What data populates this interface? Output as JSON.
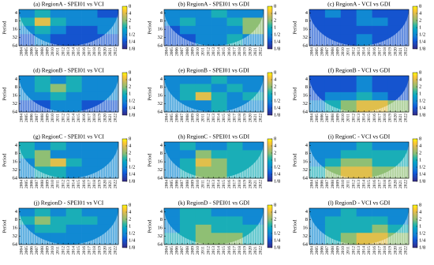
{
  "chart_data": [
    {
      "type": "heatmap",
      "title": "(a) RegionA - SPEI01 vs VCI",
      "ylabel": "Period",
      "colormap": "parula",
      "ylog": true,
      "xlim": [
        2004,
        2023
      ],
      "xticks": [
        2004,
        2005,
        2006,
        2007,
        2008,
        2009,
        2010,
        2011,
        2012,
        2013,
        2014,
        2015,
        2016,
        2017,
        2018,
        2019,
        2020,
        2021,
        2022
      ],
      "ylim": [
        3,
        64
      ],
      "yticks": [
        4,
        8,
        16,
        32,
        64
      ],
      "xbins": [
        2004,
        2007,
        2010,
        2013,
        2016,
        2019,
        2023
      ],
      "ybins": [
        3,
        6,
        12,
        24,
        64
      ],
      "clim": [
        0.125,
        8
      ],
      "cticks": [
        8,
        4,
        2,
        1,
        {
          "value": 0.5,
          "label": "1/2"
        },
        {
          "value": 0.25,
          "label": "1/4"
        },
        {
          "value": 0.125,
          "label": "1/8"
        }
      ],
      "values": [
        [
          0.5,
          1,
          0.5,
          0.5,
          0.5,
          0.25
        ],
        [
          1,
          4,
          1,
          0.5,
          0.5,
          0.5
        ],
        [
          0.5,
          1,
          0.5,
          0.25,
          0.25,
          0.5
        ],
        [
          0.25,
          0.5,
          0.25,
          0.25,
          0.25,
          0.25
        ]
      ]
    },
    {
      "type": "heatmap",
      "title": "(b) RegionA - SPEI01 vs GDI",
      "ylabel": "Period",
      "colormap": "parula",
      "ylog": true,
      "xlim": [
        2004,
        2023
      ],
      "xticks": [
        2004,
        2005,
        2006,
        2007,
        2008,
        2009,
        2010,
        2011,
        2012,
        2013,
        2014,
        2015,
        2016,
        2017,
        2018,
        2019,
        2020,
        2021,
        2022
      ],
      "ylim": [
        3,
        64
      ],
      "yticks": [
        4,
        8,
        16,
        32,
        64
      ],
      "xbins": [
        2004,
        2007,
        2010,
        2013,
        2016,
        2019,
        2023
      ],
      "ybins": [
        3,
        6,
        12,
        24,
        64
      ],
      "clim": [
        0.125,
        8
      ],
      "cticks": [
        8,
        4,
        2,
        1,
        {
          "value": 0.5,
          "label": "1/2"
        },
        {
          "value": 0.25,
          "label": "1/4"
        },
        {
          "value": 0.125,
          "label": "1/8"
        }
      ],
      "values": [
        [
          0.5,
          0.5,
          0.5,
          1,
          0.5,
          0.5
        ],
        [
          0.5,
          1,
          0.5,
          0.5,
          1,
          2
        ],
        [
          0.25,
          0.5,
          0.5,
          0.5,
          0.5,
          2
        ],
        [
          0.25,
          0.25,
          0.5,
          0.5,
          1,
          0.5
        ]
      ]
    },
    {
      "type": "heatmap",
      "title": "(c) RegionA - VCI vs GDI",
      "ylabel": "Period",
      "colormap": "parula",
      "ylog": true,
      "xlim": [
        2004,
        2023
      ],
      "xticks": [
        2004,
        2005,
        2006,
        2007,
        2008,
        2009,
        2010,
        2011,
        2012,
        2013,
        2014,
        2015,
        2016,
        2017,
        2018,
        2019,
        2020,
        2021,
        2022
      ],
      "ylim": [
        3,
        64
      ],
      "yticks": [
        4,
        8,
        16,
        32,
        64
      ],
      "xbins": [
        2004,
        2007,
        2010,
        2013,
        2016,
        2019,
        2023
      ],
      "ybins": [
        3,
        6,
        12,
        24,
        64
      ],
      "clim": [
        0.125,
        8
      ],
      "cticks": [
        8,
        4,
        2,
        1,
        {
          "value": 0.5,
          "label": "1/2"
        },
        {
          "value": 0.25,
          "label": "1/4"
        },
        {
          "value": 0.125,
          "label": "1/8"
        }
      ],
      "values": [
        [
          0.25,
          0.5,
          0.25,
          0.5,
          0.25,
          0.25
        ],
        [
          0.25,
          0.25,
          0.25,
          0.5,
          0.5,
          0.25
        ],
        [
          0.25,
          0.25,
          0.25,
          0.25,
          0.25,
          0.25
        ],
        [
          0.25,
          0.25,
          0.25,
          0.5,
          0.25,
          0.25
        ]
      ]
    },
    {
      "type": "heatmap",
      "title": "(d) RegionB - SPEI01 vs VCI",
      "ylabel": "Period",
      "colormap": "parula",
      "ylog": true,
      "xlim": [
        2004,
        2023
      ],
      "xticks": [
        2004,
        2005,
        2006,
        2007,
        2008,
        2009,
        2010,
        2011,
        2012,
        2013,
        2014,
        2015,
        2016,
        2017,
        2018,
        2019,
        2020,
        2021,
        2022
      ],
      "ylim": [
        3,
        64
      ],
      "yticks": [
        4,
        8,
        16,
        32,
        64
      ],
      "xbins": [
        2004,
        2007,
        2010,
        2013,
        2016,
        2019,
        2023
      ],
      "ybins": [
        3,
        6,
        12,
        24,
        64
      ],
      "clim": [
        0.125,
        8
      ],
      "cticks": [
        8,
        4,
        2,
        1,
        {
          "value": 0.5,
          "label": "1/2"
        },
        {
          "value": 0.25,
          "label": "1/4"
        },
        {
          "value": 0.125,
          "label": "1/8"
        }
      ],
      "values": [
        [
          0.5,
          1,
          0.5,
          1,
          0.5,
          0.5
        ],
        [
          0.5,
          1,
          2,
          1,
          0.5,
          0.5
        ],
        [
          0.5,
          0.5,
          1,
          0.5,
          0.5,
          0.5
        ],
        [
          0.25,
          0.25,
          0.5,
          0.5,
          0.25,
          0.25
        ]
      ]
    },
    {
      "type": "heatmap",
      "title": "(e) RegionB - SPEI01 vs GDI",
      "ylabel": "Period",
      "colormap": "parula",
      "ylog": true,
      "xlim": [
        2004,
        2023
      ],
      "xticks": [
        2004,
        2005,
        2006,
        2007,
        2008,
        2009,
        2010,
        2011,
        2012,
        2013,
        2014,
        2015,
        2016,
        2017,
        2018,
        2019,
        2020,
        2021,
        2022
      ],
      "ylim": [
        3,
        64
      ],
      "yticks": [
        4,
        8,
        16,
        32,
        64
      ],
      "xbins": [
        2004,
        2007,
        2010,
        2013,
        2016,
        2019,
        2023
      ],
      "ybins": [
        3,
        6,
        12,
        24,
        64
      ],
      "clim": [
        0.125,
        8
      ],
      "cticks": [
        8,
        4,
        2,
        1,
        {
          "value": 0.5,
          "label": "1/2"
        },
        {
          "value": 0.25,
          "label": "1/4"
        },
        {
          "value": 0.125,
          "label": "1/8"
        }
      ],
      "values": [
        [
          0.5,
          0.5,
          0.5,
          1,
          0.5,
          0.5
        ],
        [
          0.5,
          1,
          1,
          0.5,
          1,
          0.5
        ],
        [
          0.5,
          1,
          4,
          1,
          0.5,
          1
        ],
        [
          0.5,
          0.5,
          0.5,
          1,
          0.5,
          0.5
        ]
      ]
    },
    {
      "type": "heatmap",
      "title": "(f) RegionB - VCI vs GDI",
      "ylabel": "Period",
      "colormap": "parula",
      "ylog": true,
      "xlim": [
        2004,
        2023
      ],
      "xticks": [
        2004,
        2005,
        2006,
        2007,
        2008,
        2009,
        2010,
        2011,
        2012,
        2013,
        2014,
        2015,
        2016,
        2017,
        2018,
        2019,
        2020,
        2021,
        2022
      ],
      "ylim": [
        3,
        64
      ],
      "yticks": [
        4,
        8,
        16,
        32,
        64
      ],
      "xbins": [
        2004,
        2007,
        2010,
        2013,
        2016,
        2019,
        2023
      ],
      "ybins": [
        3,
        6,
        12,
        24,
        64
      ],
      "clim": [
        0.125,
        8
      ],
      "cticks": [
        8,
        4,
        2,
        1,
        {
          "value": 0.5,
          "label": "1/2"
        },
        {
          "value": 0.25,
          "label": "1/4"
        },
        {
          "value": 0.125,
          "label": "1/8"
        }
      ],
      "values": [
        [
          0.25,
          0.25,
          0.25,
          0.5,
          0.25,
          0.25
        ],
        [
          0.25,
          0.25,
          0.25,
          0.5,
          0.25,
          0.25
        ],
        [
          0.25,
          0.5,
          0.5,
          1,
          0.5,
          0.25
        ],
        [
          0.5,
          1,
          2,
          4,
          4,
          2
        ]
      ]
    },
    {
      "type": "heatmap",
      "title": "(g) RegionC - SPEI01 vs VCI",
      "ylabel": "Period",
      "colormap": "parula",
      "ylog": true,
      "xlim": [
        2004,
        2023
      ],
      "xticks": [
        2004,
        2005,
        2006,
        2007,
        2008,
        2009,
        2010,
        2011,
        2012,
        2013,
        2014,
        2015,
        2016,
        2017,
        2018,
        2019,
        2020,
        2021,
        2022
      ],
      "ylim": [
        3,
        64
      ],
      "yticks": [
        4,
        8,
        16,
        32,
        64
      ],
      "xbins": [
        2004,
        2007,
        2010,
        2013,
        2016,
        2019,
        2023
      ],
      "ybins": [
        3,
        6,
        12,
        24,
        64
      ],
      "clim": [
        0.125,
        8
      ],
      "cticks": [
        8,
        4,
        2,
        1,
        {
          "value": 0.5,
          "label": "1/2"
        },
        {
          "value": 0.25,
          "label": "1/4"
        },
        {
          "value": 0.125,
          "label": "1/8"
        }
      ],
      "values": [
        [
          1,
          0.5,
          1,
          0.5,
          0.5,
          0.5
        ],
        [
          1,
          2,
          0.5,
          0.5,
          0.5,
          0.5
        ],
        [
          0.5,
          2,
          4,
          1,
          0.5,
          0.5
        ],
        [
          0.5,
          1,
          1,
          0.5,
          0.5,
          0.5
        ]
      ]
    },
    {
      "type": "heatmap",
      "title": "(h) RegionC - SPEI01 vs GDI",
      "ylabel": "Period",
      "colormap": "parula",
      "ylog": true,
      "xlim": [
        2004,
        2023
      ],
      "xticks": [
        2004,
        2005,
        2006,
        2007,
        2008,
        2009,
        2010,
        2011,
        2012,
        2013,
        2014,
        2015,
        2016,
        2017,
        2018,
        2019,
        2020,
        2021,
        2022
      ],
      "ylim": [
        3,
        64
      ],
      "yticks": [
        4,
        8,
        16,
        32,
        64
      ],
      "xbins": [
        2004,
        2007,
        2010,
        2013,
        2016,
        2019,
        2023
      ],
      "ybins": [
        3,
        6,
        12,
        24,
        64
      ],
      "clim": [
        0.125,
        8
      ],
      "cticks": [
        8,
        4,
        2,
        1,
        {
          "value": 0.5,
          "label": "1/2"
        },
        {
          "value": 0.25,
          "label": "1/4"
        },
        {
          "value": 0.125,
          "label": "1/8"
        }
      ],
      "values": [
        [
          0.5,
          1,
          0.5,
          0.5,
          1,
          0.5
        ],
        [
          0.5,
          0.5,
          2,
          1,
          1,
          1
        ],
        [
          0.5,
          1,
          4,
          2,
          1,
          1
        ],
        [
          0.5,
          1,
          2,
          2,
          1,
          1
        ]
      ]
    },
    {
      "type": "heatmap",
      "title": "(i) RegionC - VCI vs GDI",
      "ylabel": "Period",
      "colormap": "parula",
      "ylog": true,
      "xlim": [
        2004,
        2023
      ],
      "xticks": [
        2004,
        2005,
        2006,
        2007,
        2008,
        2009,
        2010,
        2011,
        2012,
        2013,
        2014,
        2015,
        2016,
        2017,
        2018,
        2019,
        2020,
        2021,
        2022
      ],
      "ylim": [
        3,
        64
      ],
      "yticks": [
        4,
        8,
        16,
        32,
        64
      ],
      "xbins": [
        2004,
        2007,
        2010,
        2013,
        2016,
        2019,
        2023
      ],
      "ybins": [
        3,
        6,
        12,
        24,
        64
      ],
      "clim": [
        0.125,
        8
      ],
      "cticks": [
        8,
        4,
        2,
        1,
        {
          "value": 0.5,
          "label": "1/2"
        },
        {
          "value": 0.25,
          "label": "1/4"
        },
        {
          "value": 0.125,
          "label": "1/8"
        }
      ],
      "values": [
        [
          0.5,
          0.5,
          0.5,
          1,
          0.5,
          0.5
        ],
        [
          0.5,
          0.5,
          1,
          1,
          1,
          1
        ],
        [
          0.5,
          1,
          2,
          2,
          1,
          1
        ],
        [
          1,
          2,
          4,
          4,
          2,
          2
        ]
      ]
    },
    {
      "type": "heatmap",
      "title": "(j) RegionD - SPEI01 vs VCI",
      "ylabel": "Period",
      "colormap": "parula",
      "ylog": true,
      "xlim": [
        2004,
        2023
      ],
      "xticks": [
        2004,
        2005,
        2006,
        2007,
        2008,
        2009,
        2010,
        2011,
        2012,
        2013,
        2014,
        2015,
        2016,
        2017,
        2018,
        2019,
        2020,
        2021,
        2022
      ],
      "ylim": [
        3,
        64
      ],
      "yticks": [
        4,
        8,
        16,
        32,
        64
      ],
      "xbins": [
        2004,
        2007,
        2010,
        2013,
        2016,
        2019,
        2023
      ],
      "ybins": [
        3,
        6,
        12,
        24,
        64
      ],
      "clim": [
        0.125,
        8
      ],
      "cticks": [
        8,
        4,
        2,
        1,
        {
          "value": 0.5,
          "label": "1/2"
        },
        {
          "value": 0.25,
          "label": "1/4"
        },
        {
          "value": 0.125,
          "label": "1/8"
        }
      ],
      "values": [
        [
          0.5,
          1,
          0.5,
          1,
          0.5,
          0.5
        ],
        [
          1,
          2,
          1,
          1,
          1,
          0.5
        ],
        [
          0.5,
          1,
          1,
          0.5,
          0.5,
          0.5
        ],
        [
          0.5,
          0.5,
          0.5,
          0.5,
          0.5,
          0.5
        ]
      ]
    },
    {
      "type": "heatmap",
      "title": "(k) RegionD - SPEI01 vs GDI",
      "ylabel": "Period",
      "colormap": "parula",
      "ylog": true,
      "xlim": [
        2004,
        2023
      ],
      "xticks": [
        2004,
        2005,
        2006,
        2007,
        2008,
        2009,
        2010,
        2011,
        2012,
        2013,
        2014,
        2015,
        2016,
        2017,
        2018,
        2019,
        2020,
        2021,
        2022
      ],
      "ylim": [
        3,
        64
      ],
      "yticks": [
        4,
        8,
        16,
        32,
        64
      ],
      "xbins": [
        2004,
        2007,
        2010,
        2013,
        2016,
        2019,
        2023
      ],
      "ybins": [
        3,
        6,
        12,
        24,
        64
      ],
      "clim": [
        0.125,
        8
      ],
      "cticks": [
        8,
        4,
        2,
        1,
        {
          "value": 0.5,
          "label": "1/2"
        },
        {
          "value": 0.25,
          "label": "1/4"
        },
        {
          "value": 0.125,
          "label": "1/8"
        }
      ],
      "values": [
        [
          0.5,
          1,
          1,
          0.5,
          0.5,
          0.5
        ],
        [
          0.5,
          1,
          1,
          1,
          1,
          0.5
        ],
        [
          0.5,
          1,
          2,
          1,
          1,
          1
        ],
        [
          1,
          1,
          2,
          2,
          2,
          1
        ]
      ]
    },
    {
      "type": "heatmap",
      "title": "(l) RegionD - VCI vs GDI",
      "ylabel": "Period",
      "colormap": "parula",
      "ylog": true,
      "xlim": [
        2004,
        2023
      ],
      "xticks": [
        2004,
        2005,
        2006,
        2007,
        2008,
        2009,
        2010,
        2011,
        2012,
        2013,
        2014,
        2015,
        2016,
        2017,
        2018,
        2019,
        2020,
        2021,
        2022
      ],
      "ylim": [
        3,
        64
      ],
      "yticks": [
        4,
        8,
        16,
        32,
        64
      ],
      "xbins": [
        2004,
        2007,
        2010,
        2013,
        2016,
        2019,
        2023
      ],
      "ybins": [
        3,
        6,
        12,
        24,
        64
      ],
      "clim": [
        0.125,
        8
      ],
      "cticks": [
        8,
        4,
        2,
        1,
        {
          "value": 0.5,
          "label": "1/2"
        },
        {
          "value": 0.25,
          "label": "1/4"
        },
        {
          "value": 0.125,
          "label": "1/8"
        }
      ],
      "values": [
        [
          0.5,
          0.5,
          1,
          0.5,
          0.5,
          0.5
        ],
        [
          0.5,
          1,
          1,
          1,
          1,
          0.5
        ],
        [
          0.5,
          1,
          1,
          1,
          2,
          1
        ],
        [
          0.5,
          1,
          2,
          4,
          4,
          2
        ]
      ]
    }
  ]
}
